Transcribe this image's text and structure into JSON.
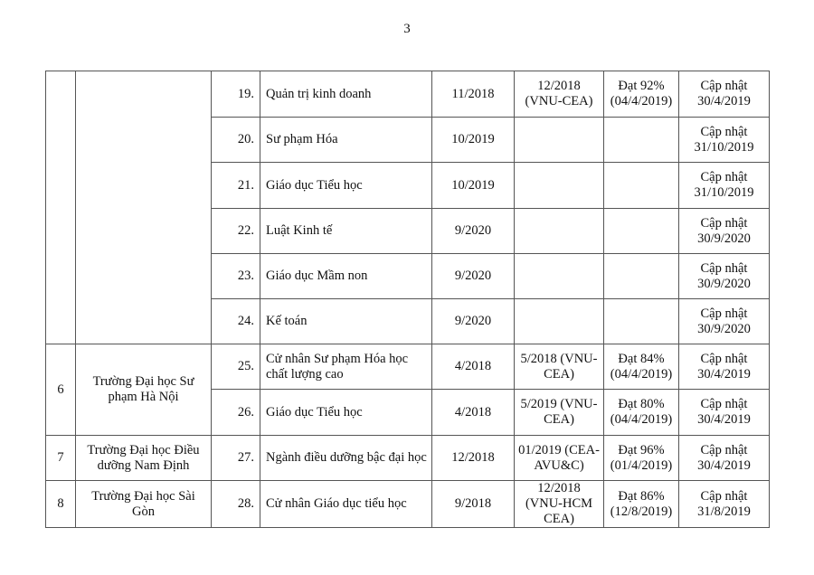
{
  "page_number": "3",
  "rows": [
    {
      "stt": "",
      "school": "",
      "no": "19.",
      "program": "Quản trị kinh doanh",
      "report": "11/2018",
      "eval": "12/2018 (VNU-CEA)",
      "result": "Đạt 92% (04/4/2019)",
      "note": "Cập nhật 30/4/2019"
    },
    {
      "no": "20.",
      "program": "Sư phạm Hóa",
      "report": "10/2019",
      "eval": "",
      "result": "",
      "note": "Cập nhật 31/10/2019"
    },
    {
      "no": "21.",
      "program": "Giáo dục Tiểu học",
      "report": "10/2019",
      "eval": "",
      "result": "",
      "note": "Cập nhật 31/10/2019"
    },
    {
      "no": "22.",
      "program": "Luật Kinh tế",
      "report": "9/2020",
      "eval": "",
      "result": "",
      "note": "Cập nhật 30/9/2020"
    },
    {
      "no": "23.",
      "program": "Giáo dục Mầm non",
      "report": "9/2020",
      "eval": "",
      "result": "",
      "note": "Cập nhật 30/9/2020"
    },
    {
      "no": "24.",
      "program": "Kế toán",
      "report": "9/2020",
      "eval": "",
      "result": "",
      "note": "Cập nhật 30/9/2020"
    },
    {
      "stt": "6",
      "school": "Trường Đại học Sư phạm Hà Nội",
      "no": "25.",
      "program": "Cử nhân Sư phạm Hóa học chất lượng cao",
      "report": "4/2018",
      "eval": "5/2018 (VNU-CEA)",
      "result": "Đạt 84% (04/4/2019)",
      "note": "Cập nhật 30/4/2019"
    },
    {
      "no": "26.",
      "program": "Giáo dục Tiểu học",
      "report": "4/2018",
      "eval": "5/2019 (VNU-CEA)",
      "result": "Đạt 80% (04/4/2019)",
      "note": "Cập nhật 30/4/2019"
    },
    {
      "stt": "7",
      "school": "Trường Đại học Điều dưỡng Nam Định",
      "no": "27.",
      "program": "Ngành điều dưỡng bậc đại học",
      "report": "12/2018",
      "eval": "01/2019 (CEA-AVU&C)",
      "result": "Đạt 96% (01/4/2019)",
      "note": "Cập nhật 30/4/2019"
    },
    {
      "stt": "8",
      "school": "Trường Đại học Sài Gòn",
      "no": "28.",
      "program": "Cử nhân Giáo dục tiểu học",
      "report": "9/2018",
      "eval": "12/2018 (VNU-HCM CEA)",
      "result": "Đạt 86% (12/8/2019)",
      "note": "Cập nhật 31/8/2019"
    }
  ]
}
